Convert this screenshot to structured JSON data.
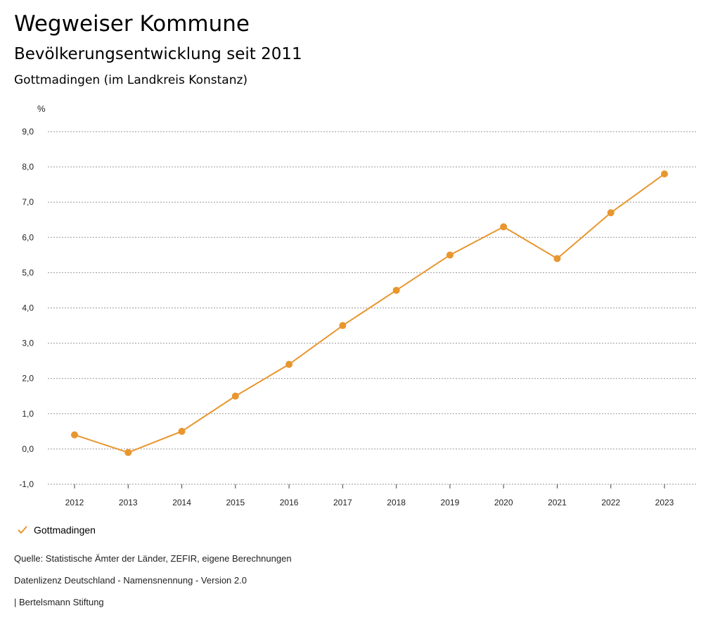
{
  "header": {
    "title": "Wegweiser Kommune",
    "subtitle": "Bevölkerungsentwicklung seit 2011",
    "region": "Gottmadingen (im Landkreis Konstanz)"
  },
  "chart_data": {
    "type": "line",
    "unit_label": "%",
    "categories": [
      "2012",
      "2013",
      "2014",
      "2015",
      "2016",
      "2017",
      "2018",
      "2019",
      "2020",
      "2021",
      "2022",
      "2023"
    ],
    "series": [
      {
        "name": "Gottmadingen",
        "color": "#E8962E",
        "values": [
          0.4,
          -0.1,
          0.5,
          1.5,
          2.4,
          3.5,
          4.5,
          5.5,
          6.3,
          5.4,
          6.7,
          7.8
        ]
      }
    ],
    "ylim": [
      -1,
      9
    ],
    "yticks": [
      "-1,0",
      "0,0",
      "1,0",
      "2,0",
      "3,0",
      "4,0",
      "5,0",
      "6,0",
      "7,0",
      "8,0",
      "9,0"
    ],
    "grid": true,
    "legend": "bottom-left"
  },
  "footer": {
    "source": "Quelle: Statistische Ämter der Länder, ZEFIR, eigene Berechnungen",
    "license": "Datenlizenz Deutschland - Namensnennung - Version 2.0",
    "publisher": "| Bertelsmann Stiftung"
  }
}
